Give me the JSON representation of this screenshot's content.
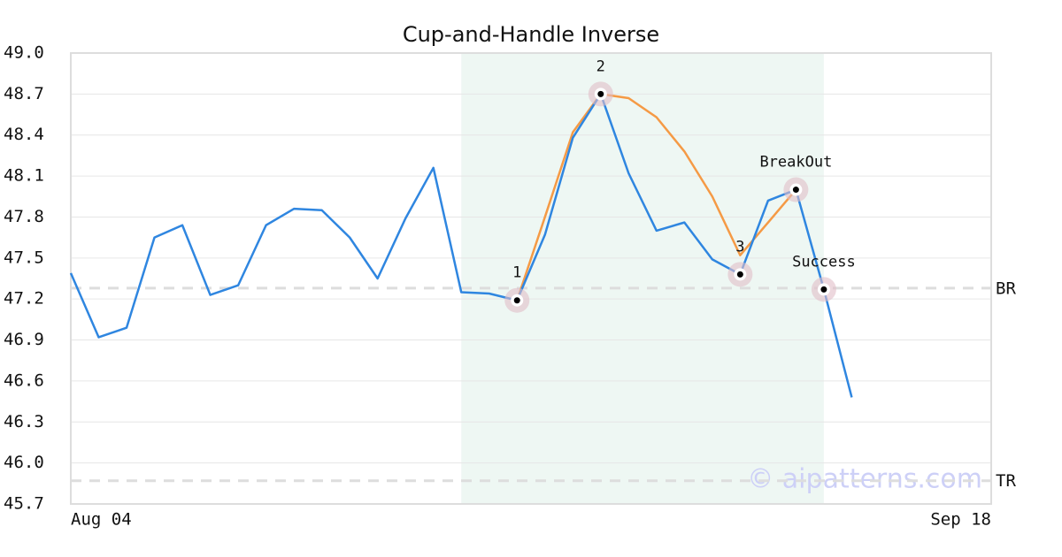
{
  "chart_data": {
    "type": "line",
    "title": "Cup-and-Handle Inverse",
    "categories": [
      "Aug 04",
      null,
      null,
      null,
      null,
      null,
      null,
      null,
      null,
      null,
      null,
      null,
      null,
      null,
      null,
      null,
      null,
      null,
      null,
      null,
      null,
      null,
      null,
      null,
      null,
      null,
      null,
      null,
      null,
      null,
      null,
      null,
      null,
      "Sep 18"
    ],
    "series": [
      {
        "color": "#2f86e0",
        "values": [
          47.39,
          46.92,
          46.99,
          47.65,
          47.74,
          47.23,
          47.3,
          47.74,
          47.86,
          47.85,
          47.65,
          47.35,
          47.79,
          48.16,
          47.25,
          47.24,
          47.19,
          47.67,
          48.38,
          48.7,
          48.12,
          47.7,
          47.76,
          47.49,
          47.38,
          47.92,
          48.0,
          47.27,
          46.48,
          null,
          null,
          null,
          null,
          null
        ]
      },
      {
        "color": "#f59a45",
        "values": [
          null,
          null,
          null,
          null,
          null,
          null,
          null,
          null,
          null,
          null,
          null,
          null,
          null,
          null,
          null,
          null,
          47.19,
          47.8,
          48.42,
          48.7,
          48.67,
          48.53,
          48.28,
          47.95,
          47.52,
          47.76,
          48.0,
          null,
          null,
          null,
          null,
          null,
          null,
          null
        ]
      }
    ],
    "points": {
      "values": [
        null,
        null,
        null,
        null,
        null,
        null,
        null,
        null,
        null,
        null,
        null,
        null,
        null,
        null,
        null,
        null,
        47.19,
        null,
        null,
        48.7,
        null,
        null,
        null,
        null,
        47.38,
        null,
        48.0,
        47.27,
        null,
        null,
        null,
        null,
        null,
        null
      ],
      "labels": [
        null,
        null,
        null,
        null,
        null,
        null,
        null,
        null,
        null,
        null,
        null,
        null,
        null,
        null,
        null,
        null,
        "1",
        null,
        null,
        "2",
        null,
        null,
        null,
        null,
        "3",
        null,
        "BreakOut",
        "Success",
        null,
        null,
        null,
        null,
        null,
        null
      ]
    },
    "highlight_range": [
      14,
      27
    ],
    "hlines": [
      {
        "label": "BR",
        "value": 47.28
      },
      {
        "label": "TR",
        "value": 45.87
      }
    ],
    "watermark": "© aipatterns.com",
    "ylim": [
      45.7,
      49.0
    ],
    "yticks": [
      {
        "value": 45.7,
        "label": "45.7"
      },
      {
        "value": 46,
        "label": "46.0"
      },
      46.3,
      46.6,
      46.9,
      47.2,
      47.5,
      47.8,
      48.1,
      48.4,
      48.7,
      {
        "value": 49,
        "label": "49.0"
      }
    ],
    "grid": true
  }
}
